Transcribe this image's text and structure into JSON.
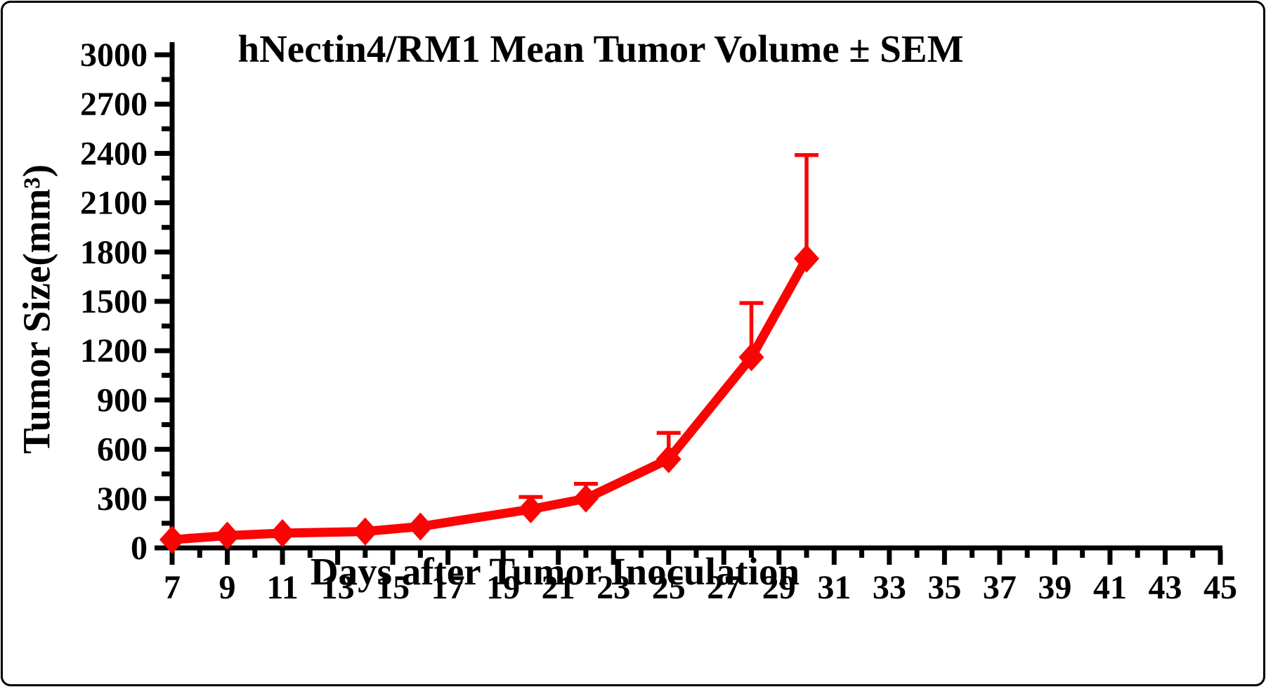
{
  "chart_data": {
    "type": "line",
    "title": "hNectin4/RM1 Mean Tumor Volume ± SEM",
    "xlabel": "Days after Tumor Inoculation",
    "ylabel": "Tumor Size(mm³)",
    "grid": false,
    "legend": false,
    "xlim": [
      7,
      45
    ],
    "ylim": [
      0,
      3000
    ],
    "x_axis": {
      "major_ticks": [
        7,
        9,
        11,
        13,
        15,
        17,
        19,
        21,
        23,
        25,
        27,
        29,
        31,
        33,
        35,
        37,
        39,
        41,
        43,
        45
      ],
      "minor_ticks": [
        8,
        10,
        12,
        14,
        16,
        18,
        20,
        22,
        24,
        26,
        28,
        30,
        32,
        34,
        36,
        38,
        40,
        42,
        44
      ]
    },
    "y_axis": {
      "major_ticks": [
        0,
        300,
        600,
        900,
        1200,
        1500,
        1800,
        2100,
        2400,
        2700,
        3000
      ],
      "minor_ticks": [
        150,
        450,
        750,
        1050,
        1350,
        1650,
        1950,
        2250,
        2550,
        2850
      ]
    },
    "series": [
      {
        "name": "hNectin4/RM1 Mean Tumor Volume",
        "marker": "diamond",
        "color": "#fb0404",
        "x": [
          7,
          9,
          11,
          14,
          16,
          20,
          22,
          25,
          28,
          30
        ],
        "y": [
          50,
          75,
          90,
          100,
          130,
          235,
          300,
          540,
          1160,
          1760
        ],
        "sem_upper": [
          0,
          0,
          0,
          0,
          0,
          75,
          90,
          160,
          330,
          630
        ]
      }
    ]
  }
}
